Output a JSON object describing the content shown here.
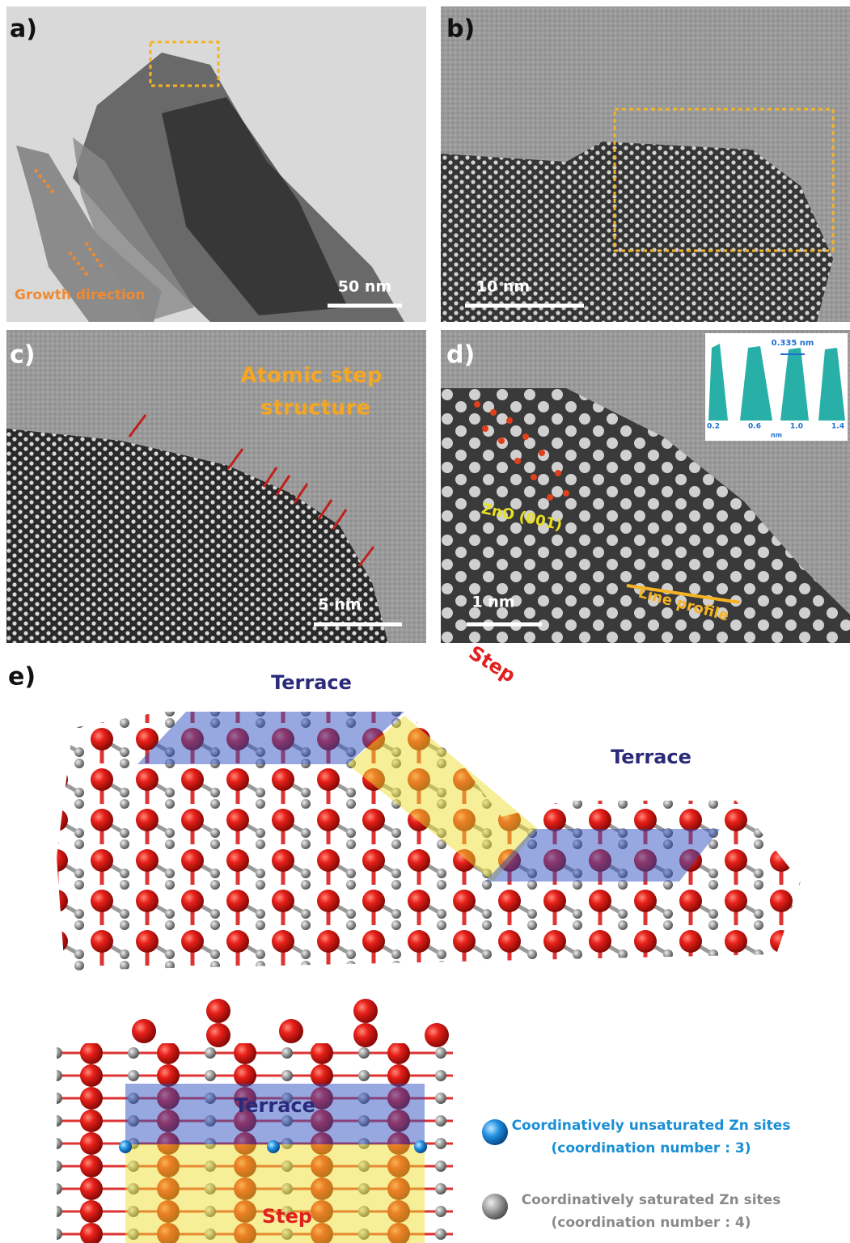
{
  "panels": [
    {
      "label": "a)",
      "annotation": "Growth direction",
      "scale_bar": "50 nm"
    },
    {
      "label": "b)",
      "scale_bar": "10 nm"
    },
    {
      "label": "c)",
      "annotation": [
        "Atomic step",
        "structure"
      ],
      "scale_bar": "5 nm"
    },
    {
      "label": "d)",
      "annotation": "ZnO (001)",
      "line": "Line profile",
      "scale_bar": "1 nm",
      "inset": {
        "spacing": "0.335 nm",
        "x_ticks": [
          "0.2",
          "0.6",
          "1.0",
          "1.4"
        ],
        "x_unit": "nm"
      }
    }
  ],
  "panel_e": {
    "label": "e)",
    "top": {
      "terrace_left": "Terrace",
      "step": "Step",
      "terrace_right": "Terrace"
    },
    "bottom": {
      "terrace": "Terrace",
      "step": "Step"
    },
    "legend": [
      {
        "line1": "Coordinatively unsaturated Zn sites",
        "line2": "(coordination number : 3)"
      },
      {
        "line1": "Coordinatively saturated Zn sites",
        "line2": "(coordination number : 4)"
      }
    ]
  }
}
